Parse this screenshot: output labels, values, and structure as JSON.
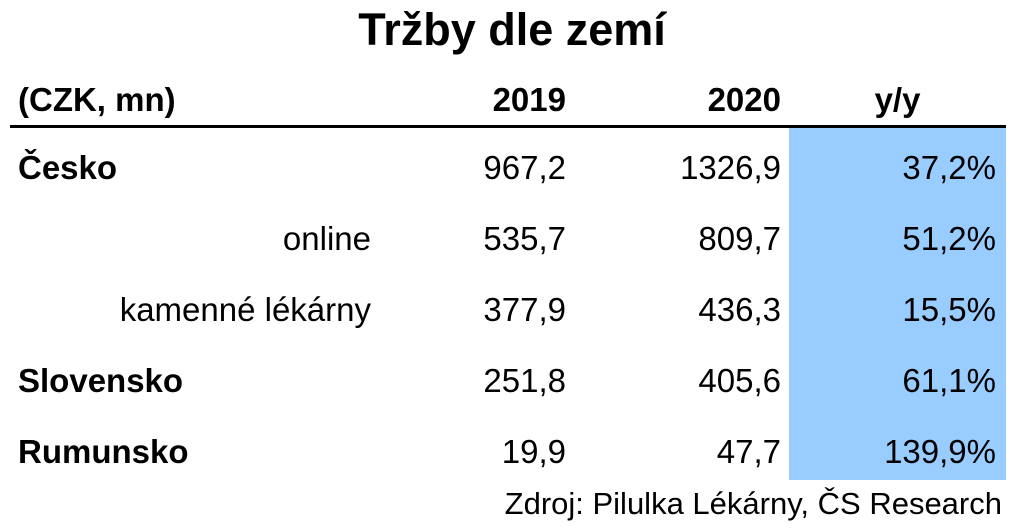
{
  "chart_data": {
    "type": "table",
    "title": "Tržby dle zemí",
    "unit_label": "(CZK, mn)",
    "columns": [
      "2019",
      "2020",
      "y/y"
    ],
    "rows": [
      {
        "label": "Česko",
        "level": "main",
        "v2019": "967,2",
        "v2020": "1326,9",
        "yy": "37,2%"
      },
      {
        "label": "online",
        "level": "sub",
        "v2019": "535,7",
        "v2020": "809,7",
        "yy": "51,2%"
      },
      {
        "label": "kamenné lékárny",
        "level": "sub",
        "v2019": "377,9",
        "v2020": "436,3",
        "yy": "15,5%"
      },
      {
        "label": "Slovensko",
        "level": "main",
        "v2019": "251,8",
        "v2020": "405,6",
        "yy": "61,1%"
      },
      {
        "label": "Rumunsko",
        "level": "main",
        "v2019": "19,9",
        "v2020": "47,7",
        "yy": "139,9%"
      }
    ],
    "source": "Zdroj: Pilulka Lékárny, ČS Research",
    "highlight_color": "#99ccff"
  }
}
